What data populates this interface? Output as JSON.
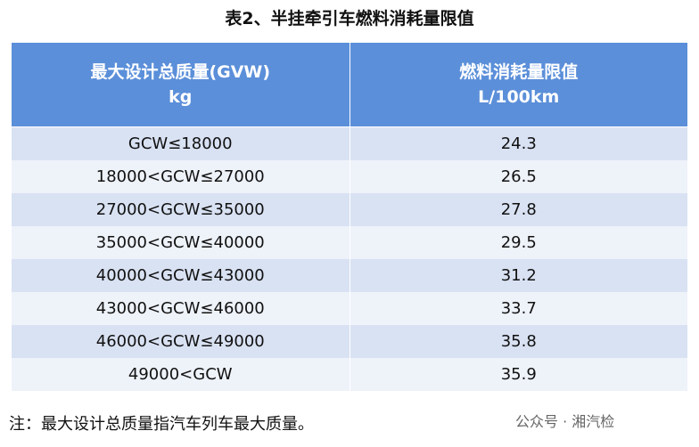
{
  "header": {
    "title": "表2、半挂牵引车燃料消耗量限值"
  },
  "table": {
    "headers": [
      [
        "最大设计总质量(GVW)",
        "kg"
      ],
      [
        "燃料消耗量限值",
        "L/100km"
      ]
    ],
    "rows": [
      [
        "GCW≤18000",
        24.3
      ],
      [
        "18000<GCW≤27000",
        26.5
      ],
      [
        "27000<GCW≤35000",
        27.8
      ],
      [
        "35000<GCW≤40000",
        29.5
      ],
      [
        "40000<GCW≤43000",
        31.2
      ],
      [
        "43000<GCW≤46000",
        33.7
      ],
      [
        "46000<GCW≤49000",
        35.8
      ],
      [
        "49000<GCW",
        35.9
      ]
    ]
  },
  "footer": {
    "note": "注：最大设计总质量指汽车列车最大质量。",
    "watermark": "公众号 · 湘汽检"
  }
}
